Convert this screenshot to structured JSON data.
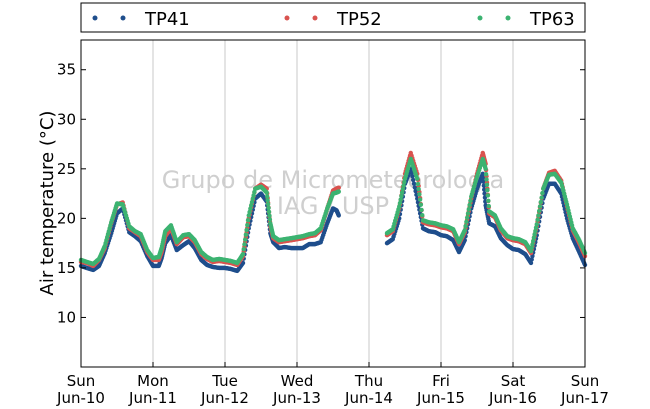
{
  "watermark": {
    "line1": "Grupo de Micrometeorologia",
    "line2": "IAG / USP"
  },
  "chart_data": {
    "type": "scatter",
    "ylabel": "Air temperature (°C)",
    "xlabel": "",
    "ylim": [
      5,
      38
    ],
    "yticks": [
      10,
      15,
      20,
      25,
      30,
      35
    ],
    "xlim": [
      0,
      7
    ],
    "xticks": [
      {
        "x": 0,
        "line1": "Sun",
        "line2": "Jun-10"
      },
      {
        "x": 1,
        "line1": "Mon",
        "line2": "Jun-11"
      },
      {
        "x": 2,
        "line1": "Tue",
        "line2": "Jun-12"
      },
      {
        "x": 3,
        "line1": "Wed",
        "line2": "Jun-13"
      },
      {
        "x": 4,
        "line1": "Thu",
        "line2": "Jun-14"
      },
      {
        "x": 5,
        "line1": "Fri",
        "line2": "Jun-15"
      },
      {
        "x": 6,
        "line1": "Sat",
        "line2": "Jun-16"
      },
      {
        "x": 7,
        "line1": "Sun",
        "line2": "Jun-17"
      }
    ],
    "grid": "vertical",
    "legend_position": "top",
    "x_unit": "days from Jun-10 00:00",
    "series": [
      {
        "name": "TP41",
        "color": "#1f4e8c",
        "points": [
          [
            0.0,
            15.2
          ],
          [
            0.08,
            15.0
          ],
          [
            0.17,
            14.8
          ],
          [
            0.25,
            15.2
          ],
          [
            0.33,
            16.5
          ],
          [
            0.42,
            18.5
          ],
          [
            0.5,
            20.5
          ],
          [
            0.58,
            21.0
          ],
          [
            0.67,
            18.6
          ],
          [
            0.75,
            18.2
          ],
          [
            0.83,
            17.7
          ],
          [
            0.92,
            16.2
          ],
          [
            1.0,
            15.2
          ],
          [
            1.08,
            15.2
          ],
          [
            1.12,
            16.0
          ],
          [
            1.17,
            17.5
          ],
          [
            1.25,
            18.3
          ],
          [
            1.33,
            16.8
          ],
          [
            1.42,
            17.3
          ],
          [
            1.5,
            17.7
          ],
          [
            1.58,
            17.0
          ],
          [
            1.67,
            15.8
          ],
          [
            1.75,
            15.3
          ],
          [
            1.83,
            15.1
          ],
          [
            1.92,
            15.0
          ],
          [
            2.0,
            15.0
          ],
          [
            2.08,
            14.9
          ],
          [
            2.17,
            14.7
          ],
          [
            2.25,
            15.5
          ],
          [
            2.33,
            19.0
          ],
          [
            2.42,
            22.0
          ],
          [
            2.5,
            22.5
          ],
          [
            2.58,
            21.7
          ],
          [
            2.63,
            18.5
          ],
          [
            2.67,
            17.6
          ],
          [
            2.75,
            17.0
          ],
          [
            2.83,
            17.1
          ],
          [
            2.92,
            17.0
          ],
          [
            3.0,
            17.0
          ],
          [
            3.08,
            17.0
          ],
          [
            3.17,
            17.4
          ],
          [
            3.25,
            17.4
          ],
          [
            3.33,
            17.6
          ],
          [
            3.42,
            19.5
          ],
          [
            3.5,
            21.0
          ],
          [
            3.55,
            20.8
          ],
          [
            3.58,
            20.3
          ],
          [
            4.25,
            17.5
          ],
          [
            4.33,
            17.9
          ],
          [
            4.42,
            20.0
          ],
          [
            4.5,
            23.5
          ],
          [
            4.58,
            25.0
          ],
          [
            4.67,
            22.0
          ],
          [
            4.75,
            19.0
          ],
          [
            4.83,
            18.7
          ],
          [
            4.92,
            18.6
          ],
          [
            5.0,
            18.3
          ],
          [
            5.08,
            18.2
          ],
          [
            5.17,
            17.8
          ],
          [
            5.25,
            16.6
          ],
          [
            5.33,
            17.8
          ],
          [
            5.42,
            21.0
          ],
          [
            5.5,
            23.0
          ],
          [
            5.58,
            24.5
          ],
          [
            5.62,
            21.3
          ],
          [
            5.67,
            19.5
          ],
          [
            5.75,
            19.2
          ],
          [
            5.83,
            18.0
          ],
          [
            5.92,
            17.3
          ],
          [
            6.0,
            16.9
          ],
          [
            6.08,
            16.8
          ],
          [
            6.17,
            16.4
          ],
          [
            6.25,
            15.5
          ],
          [
            6.33,
            18.3
          ],
          [
            6.42,
            22.0
          ],
          [
            6.5,
            23.5
          ],
          [
            6.58,
            23.5
          ],
          [
            6.67,
            22.5
          ],
          [
            6.75,
            20.0
          ],
          [
            6.83,
            18.0
          ],
          [
            6.92,
            16.6
          ],
          [
            7.0,
            15.3
          ]
        ]
      },
      {
        "name": "TP52",
        "color": "#d9534f",
        "points": [
          [
            0.0,
            15.6
          ],
          [
            0.08,
            15.5
          ],
          [
            0.17,
            15.2
          ],
          [
            0.25,
            15.8
          ],
          [
            0.33,
            17.0
          ],
          [
            0.42,
            19.5
          ],
          [
            0.5,
            21.4
          ],
          [
            0.58,
            21.6
          ],
          [
            0.67,
            19.0
          ],
          [
            0.75,
            18.6
          ],
          [
            0.83,
            18.2
          ],
          [
            0.92,
            16.6
          ],
          [
            1.0,
            15.8
          ],
          [
            1.08,
            15.8
          ],
          [
            1.12,
            16.6
          ],
          [
            1.17,
            18.2
          ],
          [
            1.25,
            19.0
          ],
          [
            1.33,
            17.4
          ],
          [
            1.42,
            18.1
          ],
          [
            1.5,
            18.2
          ],
          [
            1.58,
            17.6
          ],
          [
            1.67,
            16.4
          ],
          [
            1.75,
            15.9
          ],
          [
            1.83,
            15.6
          ],
          [
            1.92,
            15.7
          ],
          [
            2.0,
            15.6
          ],
          [
            2.08,
            15.5
          ],
          [
            2.17,
            15.3
          ],
          [
            2.25,
            16.2
          ],
          [
            2.33,
            20.0
          ],
          [
            2.42,
            23.0
          ],
          [
            2.5,
            23.4
          ],
          [
            2.58,
            23.0
          ],
          [
            2.63,
            19.2
          ],
          [
            2.67,
            18.0
          ],
          [
            2.75,
            17.6
          ],
          [
            2.83,
            17.7
          ],
          [
            2.92,
            17.8
          ],
          [
            3.0,
            17.9
          ],
          [
            3.08,
            18.0
          ],
          [
            3.17,
            18.2
          ],
          [
            3.25,
            18.3
          ],
          [
            3.33,
            18.8
          ],
          [
            3.42,
            21.0
          ],
          [
            3.5,
            22.8
          ],
          [
            3.55,
            23.0
          ],
          [
            3.58,
            23.1
          ],
          [
            4.25,
            18.3
          ],
          [
            4.33,
            18.7
          ],
          [
            4.42,
            21.0
          ],
          [
            4.5,
            24.5
          ],
          [
            4.58,
            26.6
          ],
          [
            4.67,
            24.5
          ],
          [
            4.75,
            19.6
          ],
          [
            4.83,
            19.4
          ],
          [
            4.92,
            19.3
          ],
          [
            5.0,
            19.1
          ],
          [
            5.08,
            19.0
          ],
          [
            5.17,
            18.7
          ],
          [
            5.25,
            17.4
          ],
          [
            5.33,
            18.6
          ],
          [
            5.42,
            22.0
          ],
          [
            5.5,
            24.5
          ],
          [
            5.58,
            26.6
          ],
          [
            5.62,
            25.5
          ],
          [
            5.67,
            20.5
          ],
          [
            5.75,
            20.1
          ],
          [
            5.83,
            18.8
          ],
          [
            5.92,
            18.0
          ],
          [
            6.0,
            17.8
          ],
          [
            6.08,
            17.7
          ],
          [
            6.17,
            17.4
          ],
          [
            6.25,
            16.5
          ],
          [
            6.33,
            19.2
          ],
          [
            6.42,
            23.0
          ],
          [
            6.5,
            24.6
          ],
          [
            6.58,
            24.8
          ],
          [
            6.67,
            23.8
          ],
          [
            6.75,
            21.2
          ],
          [
            6.83,
            18.8
          ],
          [
            6.92,
            17.5
          ],
          [
            7.0,
            16.2
          ]
        ]
      },
      {
        "name": "TP63",
        "color": "#3cb371",
        "points": [
          [
            0.0,
            15.8
          ],
          [
            0.08,
            15.6
          ],
          [
            0.17,
            15.4
          ],
          [
            0.25,
            15.9
          ],
          [
            0.33,
            17.2
          ],
          [
            0.42,
            19.6
          ],
          [
            0.5,
            21.5
          ],
          [
            0.58,
            21.4
          ],
          [
            0.67,
            19.2
          ],
          [
            0.75,
            18.7
          ],
          [
            0.83,
            18.4
          ],
          [
            0.92,
            16.8
          ],
          [
            1.0,
            16.0
          ],
          [
            1.08,
            16.1
          ],
          [
            1.12,
            17.0
          ],
          [
            1.17,
            18.7
          ],
          [
            1.25,
            19.3
          ],
          [
            1.33,
            17.6
          ],
          [
            1.42,
            18.3
          ],
          [
            1.5,
            18.4
          ],
          [
            1.58,
            17.8
          ],
          [
            1.67,
            16.6
          ],
          [
            1.75,
            16.1
          ],
          [
            1.83,
            15.8
          ],
          [
            1.92,
            15.9
          ],
          [
            2.0,
            15.8
          ],
          [
            2.08,
            15.7
          ],
          [
            2.17,
            15.5
          ],
          [
            2.25,
            16.4
          ],
          [
            2.33,
            20.3
          ],
          [
            2.42,
            23.0
          ],
          [
            2.5,
            23.2
          ],
          [
            2.58,
            22.6
          ],
          [
            2.63,
            19.5
          ],
          [
            2.67,
            18.2
          ],
          [
            2.75,
            17.8
          ],
          [
            2.83,
            17.9
          ],
          [
            2.92,
            18.0
          ],
          [
            3.0,
            18.1
          ],
          [
            3.08,
            18.2
          ],
          [
            3.17,
            18.4
          ],
          [
            3.25,
            18.5
          ],
          [
            3.33,
            19.0
          ],
          [
            3.42,
            21.0
          ],
          [
            3.5,
            22.5
          ],
          [
            3.55,
            22.6
          ],
          [
            3.58,
            22.7
          ],
          [
            4.25,
            18.5
          ],
          [
            4.33,
            18.9
          ],
          [
            4.42,
            21.2
          ],
          [
            4.5,
            24.0
          ],
          [
            4.58,
            26.0
          ],
          [
            4.67,
            24.0
          ],
          [
            4.75,
            19.8
          ],
          [
            4.83,
            19.6
          ],
          [
            4.92,
            19.5
          ],
          [
            5.0,
            19.3
          ],
          [
            5.08,
            19.2
          ],
          [
            5.17,
            18.9
          ],
          [
            5.25,
            17.6
          ],
          [
            5.33,
            18.8
          ],
          [
            5.42,
            22.2
          ],
          [
            5.5,
            24.2
          ],
          [
            5.58,
            26.0
          ],
          [
            5.62,
            25.0
          ],
          [
            5.67,
            20.7
          ],
          [
            5.75,
            20.3
          ],
          [
            5.83,
            19.0
          ],
          [
            5.92,
            18.2
          ],
          [
            6.0,
            18.0
          ],
          [
            6.08,
            17.9
          ],
          [
            6.17,
            17.6
          ],
          [
            6.25,
            16.7
          ],
          [
            6.33,
            19.4
          ],
          [
            6.42,
            23.0
          ],
          [
            6.5,
            24.4
          ],
          [
            6.58,
            24.5
          ],
          [
            6.67,
            23.6
          ],
          [
            6.75,
            21.4
          ],
          [
            6.83,
            19.0
          ],
          [
            6.92,
            17.8
          ],
          [
            7.0,
            16.5
          ]
        ]
      }
    ]
  }
}
